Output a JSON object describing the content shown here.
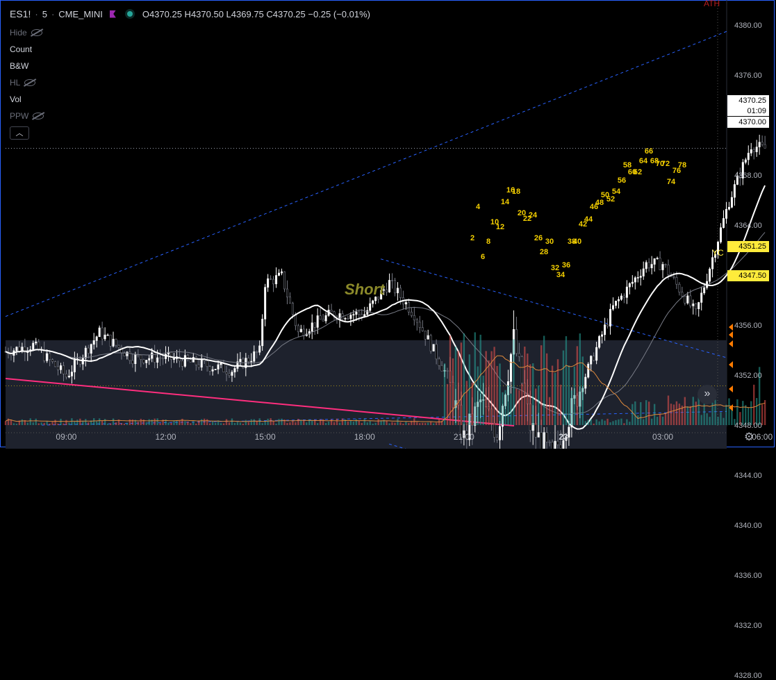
{
  "header": {
    "symbol": "ES1!",
    "interval": "5",
    "exchange": "CME_MINI",
    "ohlc": "O4370.25  H4370.50  L4369.75  C4370.25  −0.25 (−0.01%)"
  },
  "indicators": [
    {
      "label": "Hide",
      "dim": true,
      "eye_off": true
    },
    {
      "label": "Count",
      "dim": false,
      "eye_off": false
    },
    {
      "label": "B&W",
      "dim": false,
      "eye_off": false
    },
    {
      "label": "HL",
      "dim": true,
      "eye_off": true
    },
    {
      "label": "Vol",
      "dim": false,
      "eye_off": false
    },
    {
      "label": "PPW",
      "dim": true,
      "eye_off": true
    }
  ],
  "collapse_icon": "chevron-up-icon",
  "price_axis": [
    "4380.00",
    "4376.00",
    "4372.00",
    "4368.00",
    "4364.00",
    "4360.00",
    "4356.00",
    "4352.00",
    "4348.00",
    "4344.00",
    "4340.00",
    "4336.00",
    "4332.00",
    "4328.00"
  ],
  "price_tags": {
    "last": "4370.25",
    "countdown": "01:09",
    "level_a": "4370.00",
    "level_b": "4351.25",
    "level_c": "4347.50"
  },
  "time_axis": [
    {
      "label": "09:00",
      "bold": false
    },
    {
      "label": "12:00",
      "bold": false
    },
    {
      "label": "15:00",
      "bold": false
    },
    {
      "label": "18:00",
      "bold": false
    },
    {
      "label": "21:00",
      "bold": false
    },
    {
      "label": "23",
      "bold": true
    },
    {
      "label": "03:00",
      "bold": false
    },
    {
      "label": "06:00",
      "bold": false
    }
  ],
  "annotations": {
    "short": "Short",
    "yc": "YC",
    "ath": "ATH"
  },
  "bar_counts": [
    "2",
    "4",
    "6",
    "8",
    "10",
    "12",
    "14",
    "16",
    "18",
    "20",
    "22",
    "24",
    "26",
    "28",
    "30",
    "32",
    "34",
    "36",
    "38",
    "40",
    "42",
    "44",
    "46",
    "48",
    "50",
    "52",
    "54",
    "56",
    "58",
    "60",
    "62",
    "64",
    "66",
    "68",
    "70",
    "72",
    "74",
    "76",
    "78"
  ],
  "colors": {
    "up": "#ffffff",
    "down": "#787b86",
    "volume_up": "#26a69a",
    "volume_down": "#ef5350",
    "count": "#f5d000",
    "zone": "#1e222d",
    "channel": "#2962ff",
    "pink_line": "#ff2e7e",
    "accent": "#ffeb3b"
  },
  "chart_data": {
    "type": "candlestick",
    "symbol": "ES1!",
    "ylim": [
      4326,
      4382
    ],
    "x_ticks": [
      "09:00",
      "12:00",
      "15:00",
      "18:00",
      "21:00",
      "23",
      "03:00",
      "06:00"
    ],
    "close_anchors": [
      {
        "t": "07:10",
        "close": 4354.0
      },
      {
        "t": "08:00",
        "close": 4354.5
      },
      {
        "t": "09:00",
        "close": 4352.0
      },
      {
        "t": "10:00",
        "close": 4355.5
      },
      {
        "t": "11:00",
        "close": 4353.5
      },
      {
        "t": "12:00",
        "close": 4353.5
      },
      {
        "t": "13:00",
        "close": 4353.0
      },
      {
        "t": "14:00",
        "close": 4352.5
      },
      {
        "t": "14:50",
        "close": 4354.0
      },
      {
        "t": "15:00",
        "close": 4359.5
      },
      {
        "t": "15:30",
        "close": 4360.0
      },
      {
        "t": "16:00",
        "close": 4355.5
      },
      {
        "t": "17:00",
        "close": 4357.0
      },
      {
        "t": "18:00",
        "close": 4357.0
      },
      {
        "t": "18:45",
        "close": 4359.5
      },
      {
        "t": "19:30",
        "close": 4357.0
      },
      {
        "t": "20:30",
        "close": 4352.0
      },
      {
        "t": "21:00",
        "close": 4347.0
      },
      {
        "t": "21:30",
        "close": 4350.0
      },
      {
        "t": "22:00",
        "close": 4347.5
      },
      {
        "t": "22:30",
        "close": 4355.0
      },
      {
        "t": "23:00",
        "close": 4348.0
      },
      {
        "t": "23:40",
        "close": 4345.5
      },
      {
        "t": "00:30",
        "close": 4351.0
      },
      {
        "t": "01:30",
        "close": 4357.5
      },
      {
        "t": "02:30",
        "close": 4361.0
      },
      {
        "t": "03:00",
        "close": 4361.0
      },
      {
        "t": "04:00",
        "close": 4357.0
      },
      {
        "t": "05:00",
        "close": 4366.0
      },
      {
        "t": "05:40",
        "close": 4370.5
      },
      {
        "t": "06:00",
        "close": 4370.25
      }
    ]
  }
}
